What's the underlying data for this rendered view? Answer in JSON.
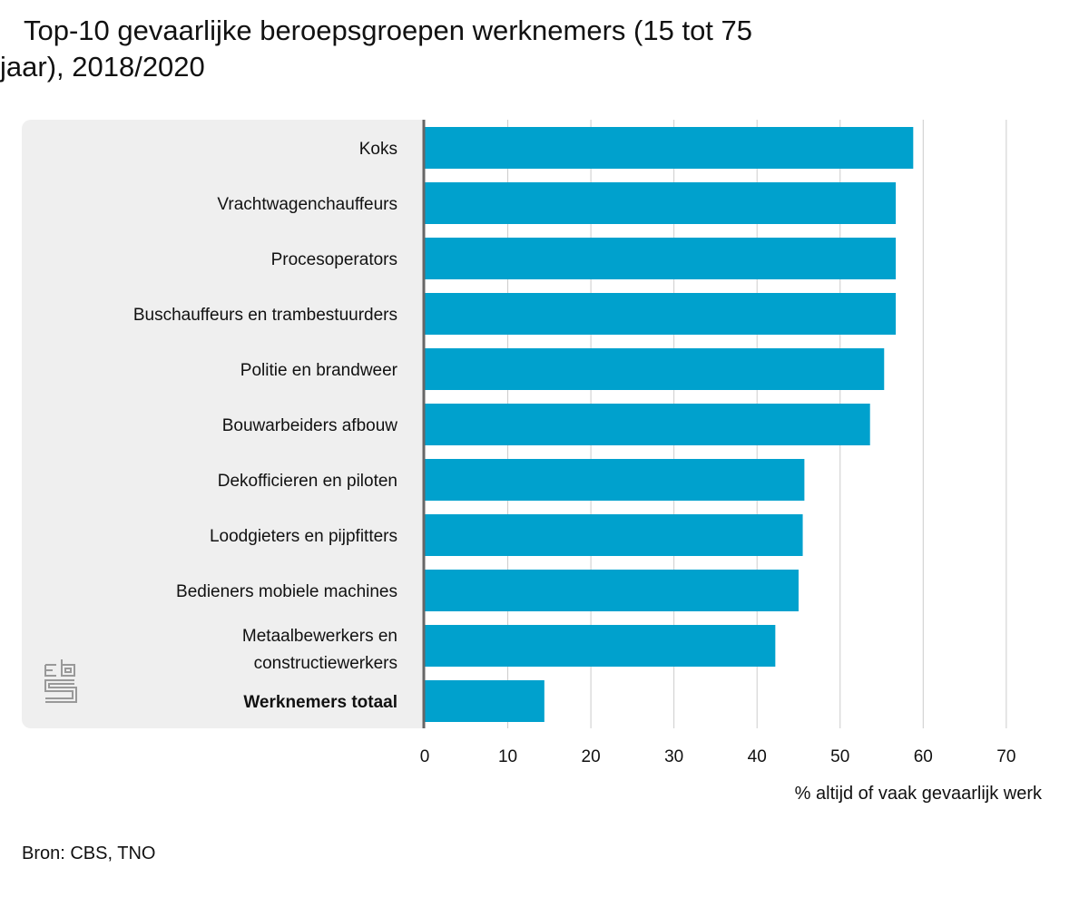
{
  "chart_data": {
    "type": "bar",
    "orientation": "horizontal",
    "title": "Top-10 gevaarlijke beroepsgroepen werknemers (15 tot 75 jaar), 2018/2020",
    "categories": [
      "Koks",
      "Vrachtwagenchauffeurs",
      "Procesoperators",
      "Buschauffeurs en trambestuurders",
      "Politie en brandweer",
      "Bouwarbeiders afbouw",
      "Dekofficieren en piloten",
      "Loodgieters en pijpfitters",
      "Bedieners mobiele machines",
      "Metaalbewerkers en constructiewerkers",
      "Werknemers totaal"
    ],
    "values": [
      58.8,
      56.7,
      56.7,
      56.7,
      55.3,
      53.6,
      45.7,
      45.5,
      45.0,
      42.2,
      14.4
    ],
    "xlabel": "% altijd of vaak gevaarlijk werk",
    "ylabel": "",
    "xlim": [
      0,
      70
    ],
    "ticks": [
      "0",
      "10",
      "20",
      "30",
      "40",
      "50",
      "60",
      "70"
    ],
    "grid": true,
    "bar_color": "#00a1cd",
    "bold_category": "Werknemers totaal"
  },
  "source": "Bron: CBS, TNO",
  "logo": "cbs"
}
